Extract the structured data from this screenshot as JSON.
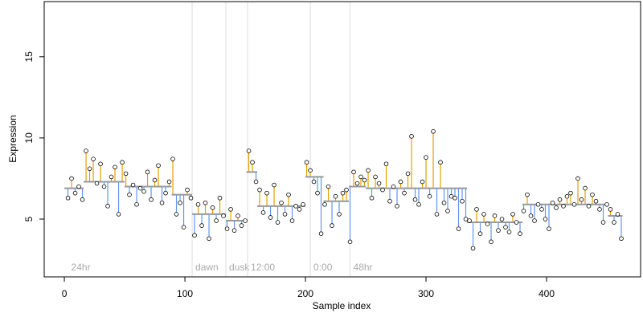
{
  "chart_data": {
    "type": "stem",
    "xlabel": "Sample index",
    "ylabel": "Expression",
    "xlim": [
      -16.7,
      478
    ],
    "ylim": [
      1.44,
      18.4
    ],
    "xticks": [
      0,
      100,
      200,
      300,
      400
    ],
    "yticks": [
      5,
      10,
      15
    ],
    "above_color": "#e69f00",
    "below_color": "#6495ed",
    "fit_color": "#999999",
    "point_color": "#000000",
    "event_color": "#dddddd",
    "x": [
      3,
      6,
      9,
      12,
      15,
      18,
      21,
      24,
      27,
      30,
      33,
      36,
      39,
      42,
      45,
      48,
      51,
      54,
      57,
      60,
      63,
      66,
      69,
      72,
      75,
      78,
      81,
      84,
      87,
      90,
      93,
      96,
      99,
      102,
      105,
      108,
      111,
      114,
      117,
      120,
      123,
      126,
      129,
      132,
      135,
      138,
      141,
      144,
      147,
      150,
      153,
      156,
      159,
      162,
      165,
      168,
      171,
      174,
      177,
      180,
      183,
      186,
      189,
      192,
      195,
      198,
      201,
      204,
      207,
      210,
      213,
      216,
      219,
      222,
      225,
      228,
      231,
      234,
      237,
      240,
      243,
      246,
      249,
      252,
      255,
      258,
      261,
      264,
      267,
      270,
      273,
      276,
      279,
      282,
      285,
      288,
      291,
      294,
      297,
      300,
      303,
      306,
      309,
      312,
      315,
      318,
      321,
      324,
      327,
      330,
      333,
      336,
      339,
      342,
      345,
      348,
      351,
      354,
      357,
      360,
      363,
      366,
      369,
      372,
      375,
      378,
      381,
      384,
      387,
      390,
      393,
      396,
      399,
      402,
      405,
      408,
      411,
      414,
      417,
      420,
      423,
      426,
      429,
      432,
      435,
      438,
      441,
      444,
      447,
      450,
      453,
      456,
      459,
      462
    ],
    "values": [
      6.3,
      7.5,
      6.6,
      7.0,
      6.2,
      9.2,
      8.1,
      8.7,
      7.2,
      8.4,
      7.0,
      5.8,
      7.6,
      8.2,
      5.3,
      8.5,
      7.8,
      6.5,
      7.1,
      5.9,
      6.9,
      6.7,
      7.9,
      6.2,
      7.4,
      8.3,
      6.0,
      6.6,
      7.3,
      8.7,
      5.3,
      6.0,
      4.5,
      6.8,
      6.3,
      4.0,
      5.9,
      4.6,
      6.0,
      3.8,
      5.7,
      4.9,
      6.3,
      5.2,
      4.4,
      5.6,
      4.3,
      5.2,
      4.6,
      4.9,
      9.2,
      8.5,
      7.3,
      6.8,
      5.4,
      6.6,
      5.1,
      7.1,
      4.8,
      6.0,
      5.3,
      6.5,
      4.9,
      5.8,
      5.6,
      5.9,
      8.5,
      8.0,
      7.3,
      6.6,
      4.1,
      5.9,
      7.0,
      4.6,
      6.4,
      5.3,
      6.6,
      6.8,
      3.6,
      7.9,
      7.2,
      7.6,
      7.4,
      8.0,
      6.3,
      7.6,
      7.2,
      6.8,
      8.4,
      6.1,
      7.0,
      5.8,
      7.3,
      6.6,
      7.8,
      10.1,
      6.2,
      5.9,
      7.3,
      8.8,
      6.4,
      10.4,
      5.3,
      8.5,
      6.0,
      5.5,
      6.4,
      6.3,
      4.4,
      6.1,
      5.0,
      4.9,
      3.2,
      5.6,
      4.1,
      5.3,
      4.7,
      3.6,
      5.2,
      4.3,
      5.0,
      4.5,
      4.2,
      5.3,
      4.8,
      4.1,
      5.5,
      6.5,
      5.2,
      4.9,
      5.9,
      5.6,
      5.0,
      4.4,
      6.0,
      5.7,
      6.2,
      5.8,
      6.4,
      6.6,
      5.9,
      7.5,
      6.2,
      6.9,
      5.8,
      6.5,
      6.1,
      5.6,
      4.8,
      5.9,
      5.6,
      4.8,
      5.3,
      3.8
    ],
    "fit": [
      [
        0,
        16,
        6.9
      ],
      [
        16,
        50,
        7.3
      ],
      [
        50,
        89,
        7.0
      ],
      [
        89,
        106,
        6.5
      ],
      [
        106,
        134,
        5.3
      ],
      [
        134,
        151,
        4.9
      ],
      [
        151,
        160,
        7.9
      ],
      [
        160,
        200,
        5.8
      ],
      [
        200,
        215,
        7.6
      ],
      [
        215,
        236,
        6.1
      ],
      [
        236,
        250,
        7.0
      ],
      [
        250,
        334,
        6.9
      ],
      [
        334,
        380,
        4.8
      ],
      [
        380,
        451,
        5.9
      ],
      [
        451,
        463,
        5.2
      ]
    ],
    "events": [
      {
        "x": 3,
        "label": "24hr",
        "line": false
      },
      {
        "x": 106,
        "label": "dawn",
        "line": true
      },
      {
        "x": 134,
        "label": "dusk",
        "line": true
      },
      {
        "x": 152,
        "label": "12:00",
        "line": true
      },
      {
        "x": 204,
        "label": "0:00",
        "line": true
      },
      {
        "x": 237,
        "label": "48hr",
        "line": true
      }
    ]
  }
}
